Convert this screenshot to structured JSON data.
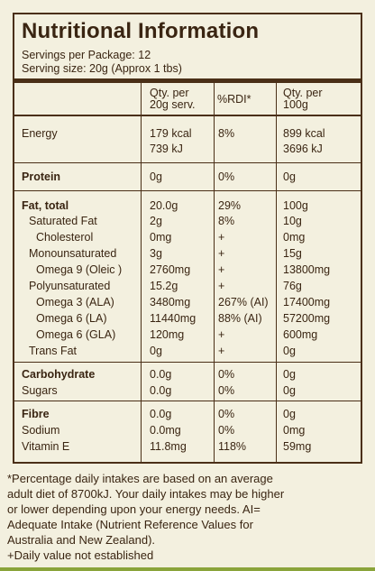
{
  "title": "Nutritional Information",
  "servings_per_package": "Servings per Package: 12",
  "serving_size": "Serving size: 20g (Approx 1 tbs)",
  "columns": {
    "per_serve_1": "Qty. per",
    "per_serve_2": "20g serv.",
    "rdi": "%RDI*",
    "per_100_1": "Qty. per",
    "per_100_2": "100g"
  },
  "rows": [
    {
      "name": "Energy",
      "serve": "179 kcal",
      "rdi": "8%",
      "per100": "899 kcal"
    },
    {
      "name": "",
      "serve": "739 kJ",
      "rdi": "",
      "per100": "3696 kJ"
    },
    {
      "name": "Protein",
      "serve": "0g",
      "rdi": "0%",
      "per100": "0g"
    },
    {
      "name": "Fat, total",
      "serve": "20.0g",
      "rdi": "29%",
      "per100": "100g"
    },
    {
      "name": "Saturated Fat",
      "serve": "2g",
      "rdi": "8%",
      "per100": "10g"
    },
    {
      "name": "Cholesterol",
      "serve": "0mg",
      "rdi": "+",
      "per100": "0mg"
    },
    {
      "name": "Monounsaturated",
      "serve": "3g",
      "rdi": "+",
      "per100": "15g"
    },
    {
      "name": "Omega 9 (Oleic )",
      "serve": "2760mg",
      "rdi": "+",
      "per100": "13800mg"
    },
    {
      "name": "Polyunsaturated",
      "serve": "15.2g",
      "rdi": "+",
      "per100": "76g"
    },
    {
      "name": "Omega 3 (ALA)",
      "serve": "3480mg",
      "rdi": "267% (AI)",
      "per100": "17400mg"
    },
    {
      "name": "Omega 6 (LA)",
      "serve": "11440mg",
      "rdi": "88% (AI)",
      "per100": "57200mg"
    },
    {
      "name": "Omega 6 (GLA)",
      "serve": "120mg",
      "rdi": "+",
      "per100": "600mg"
    },
    {
      "name": "Trans Fat",
      "serve": "0g",
      "rdi": "+",
      "per100": "0g"
    },
    {
      "name": "Carbohydrate",
      "serve": "0.0g",
      "rdi": "0%",
      "per100": "0g"
    },
    {
      "name": "Sugars",
      "serve": "0.0g",
      "rdi": "0%",
      "per100": "0g"
    },
    {
      "name": "Fibre",
      "serve": "0.0g",
      "rdi": "0%",
      "per100": "0g"
    },
    {
      "name": "Sodium",
      "serve": "0.0mg",
      "rdi": "0%",
      "per100": "0mg"
    },
    {
      "name": "Vitamin E",
      "serve": "11.8mg",
      "rdi": "118%",
      "per100": "59mg"
    }
  ],
  "footer": [
    "*Percentage daily intakes are based on an average",
    "adult diet of 8700kJ. Your daily intakes may be higher",
    "or lower depending upon your energy needs. AI=",
    "Adequate Intake (Nutrient Reference Values for",
    "Australia and New Zealand).",
    "+Daily value not established"
  ],
  "colors": {
    "text": "#3a2512",
    "background": "#f3f0df",
    "accent": "#8aa43a"
  }
}
